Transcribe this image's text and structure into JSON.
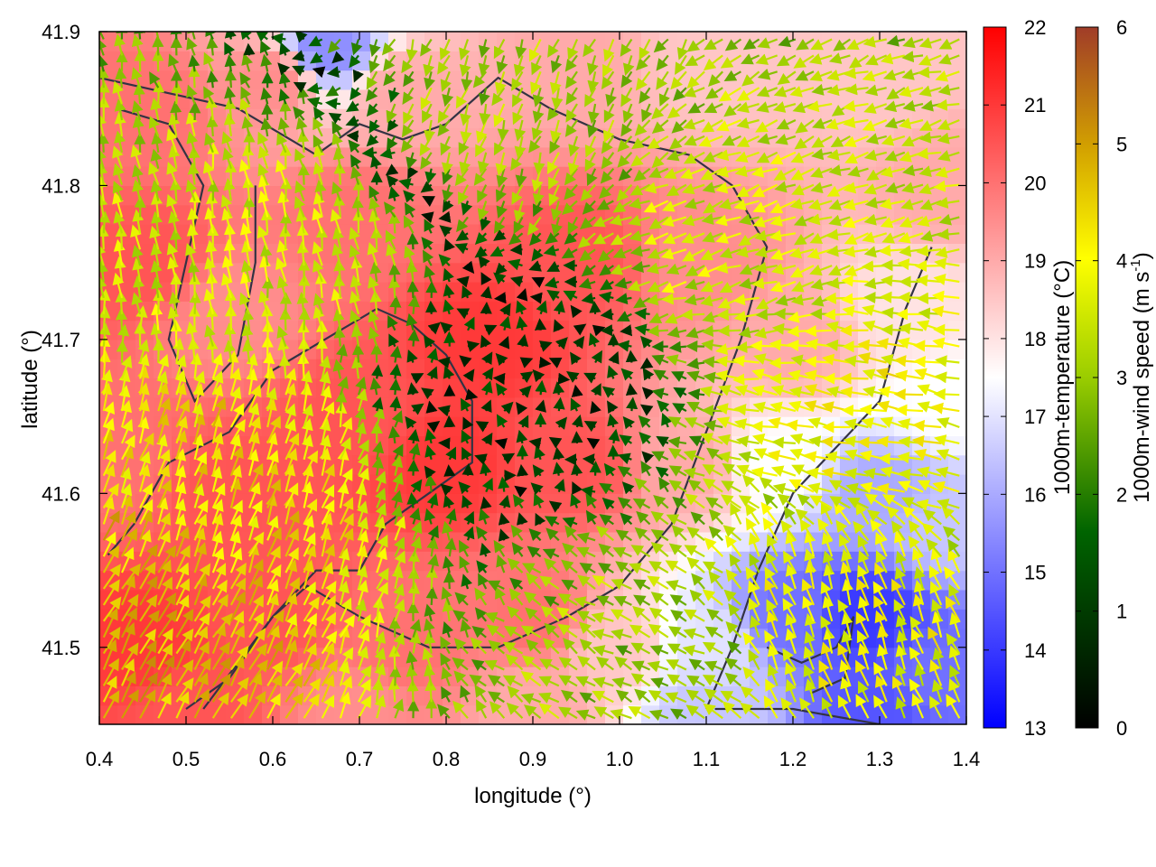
{
  "chart_data": {
    "type": "heatmap",
    "title": "",
    "xlabel": "longitude (°)",
    "ylabel": "latitude (°)",
    "xlim": [
      0.4,
      1.4
    ],
    "ylim": [
      41.45,
      41.9
    ],
    "xticks": [
      0.4,
      0.5,
      0.6,
      0.7,
      0.8,
      0.9,
      1.0,
      1.1,
      1.2,
      1.3,
      1.4
    ],
    "xtick_labels": [
      "0.4",
      "0.5",
      "0.6",
      "0.7",
      "0.8",
      "0.9",
      "1.0",
      "1.1",
      "1.2",
      "1.3",
      "1.4"
    ],
    "yticks": [
      41.5,
      41.6,
      41.7,
      41.8,
      41.9
    ],
    "ytick_labels": [
      "41.5",
      "41.6",
      "41.7",
      "41.8",
      "41.9"
    ],
    "grid": false,
    "temperature_colorbar": {
      "label": "1000m-temperature (°C)",
      "range": [
        13,
        22
      ],
      "ticks": [
        13,
        14,
        15,
        16,
        17,
        18,
        19,
        20,
        21,
        22
      ],
      "tick_labels": [
        "13",
        "14",
        "15",
        "16",
        "17",
        "18",
        "19",
        "20",
        "21",
        "22"
      ],
      "colors": [
        "#0000ff",
        "#ffffff",
        "#ff0000"
      ]
    },
    "wind_speed_colorbar": {
      "label_main": "1000m-wind speed (m s",
      "label_sup": "-1",
      "label_end": ")",
      "range": [
        0,
        6
      ],
      "ticks": [
        0,
        1,
        2,
        3,
        4,
        5,
        6
      ],
      "tick_labels": [
        "0",
        "1",
        "2",
        "3",
        "4",
        "5",
        "6"
      ],
      "colors": [
        "#000000",
        "#006400",
        "#9acd00",
        "#ffff00",
        "#d2a000",
        "#a03c28"
      ]
    },
    "temperature_field": [
      {
        "lon": 0.45,
        "lat": 41.85,
        "t": 20.0
      },
      {
        "lon": 0.6,
        "lat": 41.87,
        "t": 19.5
      },
      {
        "lon": 0.66,
        "lat": 41.89,
        "t": 15.5
      },
      {
        "lon": 0.75,
        "lat": 41.86,
        "t": 19.0
      },
      {
        "lon": 0.95,
        "lat": 41.88,
        "t": 19.0
      },
      {
        "lon": 1.1,
        "lat": 41.88,
        "t": 18.5
      },
      {
        "lon": 1.3,
        "lat": 41.87,
        "t": 18.5
      },
      {
        "lon": 1.38,
        "lat": 41.8,
        "t": 19.0
      },
      {
        "lon": 0.45,
        "lat": 41.75,
        "t": 20.5
      },
      {
        "lon": 0.55,
        "lat": 41.72,
        "t": 19.5
      },
      {
        "lon": 0.7,
        "lat": 41.78,
        "t": 20.0
      },
      {
        "lon": 0.85,
        "lat": 41.7,
        "t": 21.0
      },
      {
        "lon": 0.95,
        "lat": 41.75,
        "t": 20.5
      },
      {
        "lon": 1.1,
        "lat": 41.75,
        "t": 19.5
      },
      {
        "lon": 1.2,
        "lat": 41.7,
        "t": 19.0
      },
      {
        "lon": 1.33,
        "lat": 41.72,
        "t": 18.0
      },
      {
        "lon": 1.38,
        "lat": 41.66,
        "t": 17.5
      },
      {
        "lon": 0.42,
        "lat": 41.62,
        "t": 20.0
      },
      {
        "lon": 0.55,
        "lat": 41.6,
        "t": 20.5
      },
      {
        "lon": 0.7,
        "lat": 41.65,
        "t": 20.5
      },
      {
        "lon": 0.8,
        "lat": 41.62,
        "t": 21.0
      },
      {
        "lon": 0.95,
        "lat": 41.62,
        "t": 20.5
      },
      {
        "lon": 1.08,
        "lat": 41.62,
        "t": 19.0
      },
      {
        "lon": 1.18,
        "lat": 41.62,
        "t": 17.5
      },
      {
        "lon": 1.3,
        "lat": 41.6,
        "t": 16.0
      },
      {
        "lon": 1.38,
        "lat": 41.58,
        "t": 16.5
      },
      {
        "lon": 0.45,
        "lat": 41.5,
        "t": 21.0
      },
      {
        "lon": 0.6,
        "lat": 41.52,
        "t": 20.5
      },
      {
        "lon": 0.75,
        "lat": 41.5,
        "t": 20.0
      },
      {
        "lon": 0.9,
        "lat": 41.52,
        "t": 20.0
      },
      {
        "lon": 1.0,
        "lat": 41.5,
        "t": 18.5
      },
      {
        "lon": 1.1,
        "lat": 41.5,
        "t": 17.0
      },
      {
        "lon": 1.2,
        "lat": 41.52,
        "t": 15.0
      },
      {
        "lon": 1.28,
        "lat": 41.52,
        "t": 14.0
      },
      {
        "lon": 1.36,
        "lat": 41.48,
        "t": 15.0
      },
      {
        "lon": 0.5,
        "lat": 41.46,
        "t": 20.5
      },
      {
        "lon": 0.7,
        "lat": 41.46,
        "t": 19.5
      },
      {
        "lon": 0.9,
        "lat": 41.46,
        "t": 19.0
      },
      {
        "lon": 1.1,
        "lat": 41.46,
        "t": 16.5
      },
      {
        "lon": 1.3,
        "lat": 41.46,
        "t": 14.5
      }
    ],
    "wind_field": {
      "center": {
        "lon": 0.88,
        "lat": 41.66
      },
      "description_of_pattern": "convergent winds toward center; weak near center, stronger at edges",
      "samples": [
        {
          "lon": 0.45,
          "lat": 41.5,
          "speed": 4.5,
          "dir_deg": 60
        },
        {
          "lon": 0.55,
          "lat": 41.6,
          "speed": 4.0,
          "dir_deg": 70
        },
        {
          "lon": 0.6,
          "lat": 41.75,
          "speed": 3.0,
          "dir_deg": 100
        },
        {
          "lon": 0.9,
          "lat": 41.85,
          "speed": 2.5,
          "dir_deg": 250
        },
        {
          "lon": 1.15,
          "lat": 41.78,
          "speed": 3.0,
          "dir_deg": 200
        },
        {
          "lon": 1.3,
          "lat": 41.65,
          "speed": 3.5,
          "dir_deg": 170
        },
        {
          "lon": 1.25,
          "lat": 41.52,
          "speed": 3.5,
          "dir_deg": 110
        },
        {
          "lon": 1.05,
          "lat": 41.5,
          "speed": 2.5,
          "dir_deg": 150
        },
        {
          "lon": 0.88,
          "lat": 41.66,
          "speed": 0.5,
          "dir_deg": 90
        }
      ]
    },
    "contour_lines": [
      [
        [
          0.4,
          41.87
        ],
        [
          0.48,
          41.86
        ],
        [
          0.56,
          41.85
        ],
        [
          0.62,
          41.83
        ],
        [
          0.65,
          41.82
        ],
        [
          0.7,
          41.84
        ],
        [
          0.75,
          41.83
        ],
        [
          0.8,
          41.84
        ],
        [
          0.86,
          41.87
        ],
        [
          0.92,
          41.85
        ],
        [
          1.0,
          41.83
        ],
        [
          1.08,
          41.82
        ],
        [
          1.13,
          41.8
        ],
        [
          1.17,
          41.76
        ],
        [
          1.14,
          41.7
        ],
        [
          1.1,
          41.64
        ],
        [
          1.06,
          41.58
        ],
        [
          1.0,
          41.54
        ],
        [
          0.94,
          41.52
        ],
        [
          0.86,
          41.5
        ],
        [
          0.78,
          41.5
        ],
        [
          0.7,
          41.52
        ],
        [
          0.64,
          41.54
        ],
        [
          0.6,
          41.52
        ],
        [
          0.56,
          41.49
        ],
        [
          0.52,
          41.46
        ]
      ],
      [
        [
          0.42,
          41.85
        ],
        [
          0.48,
          41.84
        ],
        [
          0.52,
          41.8
        ],
        [
          0.5,
          41.75
        ],
        [
          0.48,
          41.7
        ],
        [
          0.51,
          41.66
        ],
        [
          0.56,
          41.69
        ],
        [
          0.58,
          41.75
        ],
        [
          0.58,
          41.8
        ]
      ],
      [
        [
          0.41,
          41.56
        ],
        [
          0.44,
          41.58
        ],
        [
          0.48,
          41.62
        ],
        [
          0.55,
          41.64
        ],
        [
          0.6,
          41.68
        ],
        [
          0.66,
          41.7
        ],
        [
          0.72,
          41.72
        ],
        [
          0.76,
          41.71
        ],
        [
          0.8,
          41.69
        ],
        [
          0.83,
          41.66
        ],
        [
          0.83,
          41.62
        ],
        [
          0.78,
          41.6
        ],
        [
          0.73,
          41.58
        ],
        [
          0.7,
          41.55
        ],
        [
          0.65,
          41.55
        ],
        [
          0.6,
          41.52
        ],
        [
          0.55,
          41.48
        ],
        [
          0.5,
          41.46
        ]
      ],
      [
        [
          1.1,
          41.46
        ],
        [
          1.13,
          41.5
        ],
        [
          1.16,
          41.55
        ],
        [
          1.2,
          41.6
        ],
        [
          1.25,
          41.63
        ],
        [
          1.3,
          41.66
        ],
        [
          1.33,
          41.72
        ],
        [
          1.36,
          41.76
        ]
      ],
      [
        [
          1.17,
          41.5
        ],
        [
          1.21,
          41.49
        ],
        [
          1.25,
          41.5
        ],
        [
          1.27,
          41.52
        ],
        [
          1.26,
          41.48
        ],
        [
          1.22,
          41.47
        ]
      ],
      [
        [
          1.11,
          41.46
        ],
        [
          1.2,
          41.46
        ],
        [
          1.3,
          41.45
        ]
      ]
    ]
  }
}
